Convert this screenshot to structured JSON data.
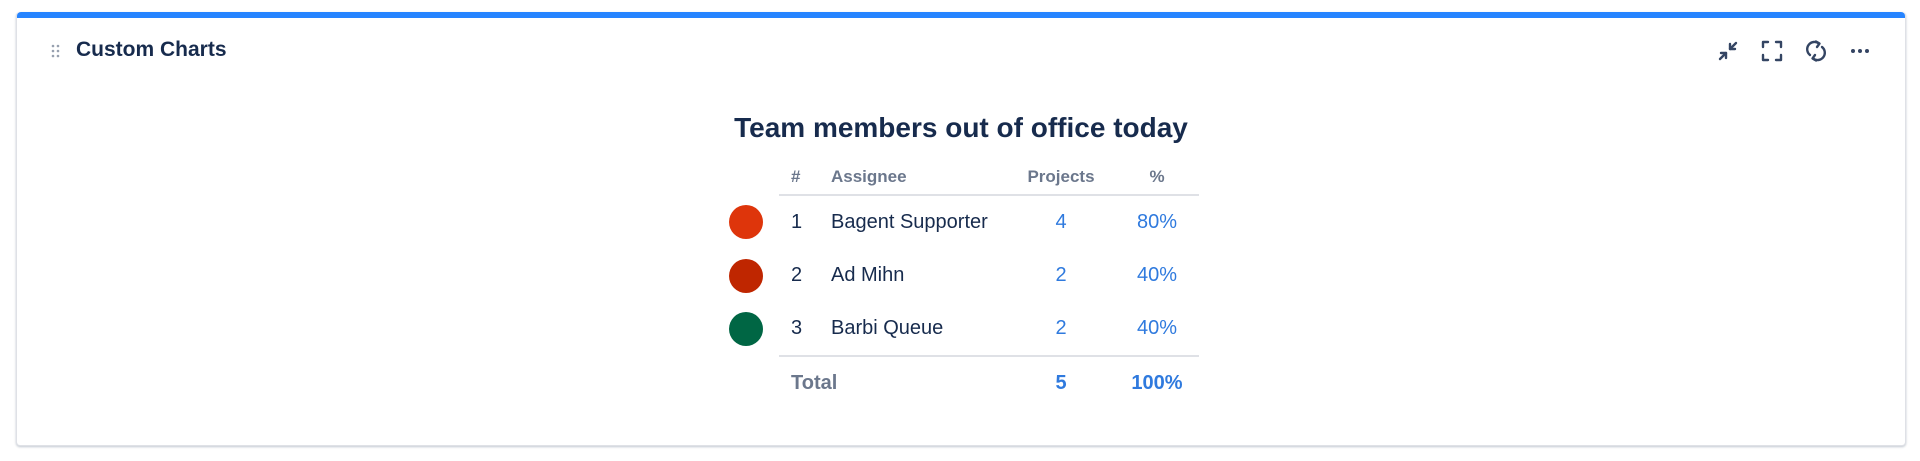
{
  "gadget": {
    "title": "Custom Charts",
    "accent_color": "#2684ff",
    "toolbar": [
      {
        "name": "minimize-icon"
      },
      {
        "name": "fullscreen-icon"
      },
      {
        "name": "refresh-icon"
      },
      {
        "name": "more-icon"
      }
    ]
  },
  "chart": {
    "title": "Team members out of office today",
    "headers": {
      "rank": "#",
      "assignee": "Assignee",
      "projects": "Projects",
      "percent": "%"
    },
    "rows": [
      {
        "rank": "1",
        "assignee": "Bagent Supporter",
        "projects": "4",
        "percent": "80%",
        "color": "#de350b"
      },
      {
        "rank": "2",
        "assignee": "Ad Mihn",
        "projects": "2",
        "percent": "40%",
        "color": "#bf2600"
      },
      {
        "rank": "3",
        "assignee": "Barbi Queue",
        "projects": "2",
        "percent": "40%",
        "color": "#006644"
      }
    ],
    "total": {
      "label": "Total",
      "projects": "5",
      "percent": "100%"
    }
  },
  "chart_data": {
    "type": "table",
    "title": "Team members out of office today",
    "columns": [
      "#",
      "Assignee",
      "Projects",
      "%"
    ],
    "rows": [
      [
        "1",
        "Bagent Supporter",
        4,
        "80%"
      ],
      [
        "2",
        "Ad Mihn",
        2,
        "40%"
      ],
      [
        "3",
        "Barbi Queue",
        2,
        "40%"
      ]
    ],
    "total": [
      "Total",
      5,
      "100%"
    ]
  }
}
